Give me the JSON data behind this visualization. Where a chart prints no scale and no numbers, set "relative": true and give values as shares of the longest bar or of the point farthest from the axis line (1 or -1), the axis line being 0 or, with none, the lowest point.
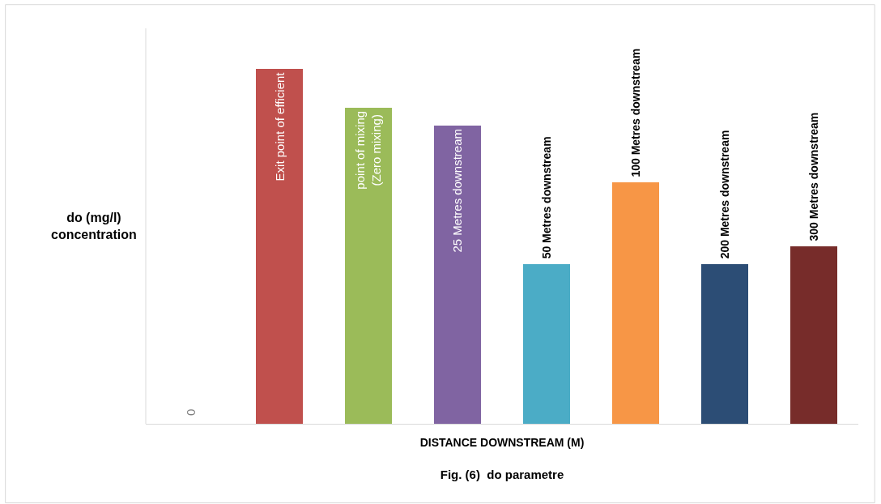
{
  "chart_data": {
    "type": "bar",
    "relative": true,
    "title": "Fig. (6)  do parametre",
    "xlabel": "DISTANCE DOWNSTREAM (M)",
    "ylabel": "do (mg/l)\nconcentration",
    "categories": [
      "0",
      "Exit point of efficient",
      "point of mixing\n(Zero mixing)",
      "25 Metres downstream",
      "50 Metres downstream",
      "100 Metres downstream",
      "200 Metres downstream",
      "300 Metres downstream"
    ],
    "values": [
      0,
      1,
      0.89,
      0.84,
      0.45,
      0.68,
      0.45,
      0.5
    ],
    "colors": [
      "#4f81bd",
      "#c0504d",
      "#9bbb59",
      "#8064a2",
      "#4bacc6",
      "#f79646",
      "#2c4d75",
      "#772c2a"
    ]
  }
}
